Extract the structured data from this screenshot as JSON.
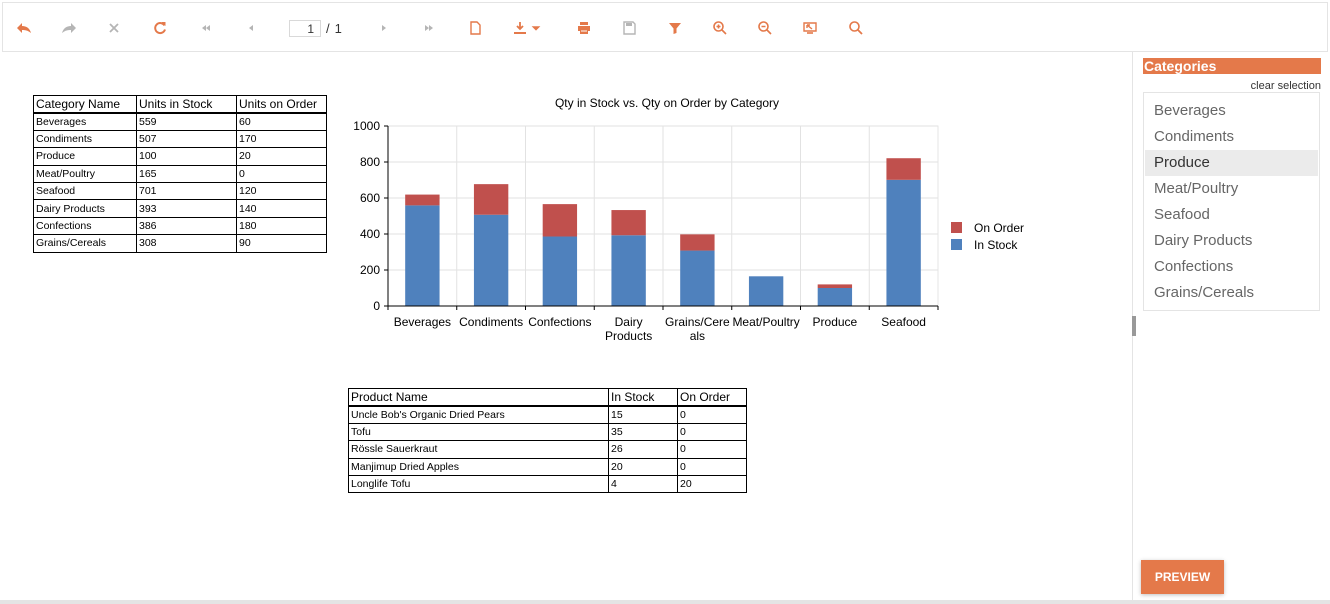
{
  "toolbar": {
    "page_current": "1",
    "page_separator": "/",
    "page_total": "1",
    "accent": "#e4794a",
    "muted": "#b5b5b5",
    "buttons": [
      "undo-icon",
      "redo-icon",
      "close-icon",
      "refresh-icon",
      "first-page-icon",
      "prev-page-icon",
      "next-page-icon",
      "last-page-icon",
      "new-document-icon",
      "download-icon",
      "print-icon",
      "save-icon",
      "filter-icon",
      "zoom-in-icon",
      "zoom-out-icon",
      "fullscreen-icon",
      "search-icon"
    ]
  },
  "category_table": {
    "headers": [
      "Category Name",
      "Units in Stock",
      "Units on Order"
    ],
    "rows": [
      [
        "Beverages",
        "559",
        "60"
      ],
      [
        "Condiments",
        "507",
        "170"
      ],
      [
        "Produce",
        "100",
        "20"
      ],
      [
        "Meat/Poultry",
        "165",
        "0"
      ],
      [
        "Seafood",
        "701",
        "120"
      ],
      [
        "Dairy Products",
        "393",
        "140"
      ],
      [
        "Confections",
        "386",
        "180"
      ],
      [
        "Grains/Cereals",
        "308",
        "90"
      ]
    ]
  },
  "product_table": {
    "headers": [
      "Product Name",
      "In Stock",
      "On Order"
    ],
    "rows": [
      [
        "Uncle Bob's Organic Dried Pears",
        "15",
        "0"
      ],
      [
        "Tofu",
        "35",
        "0"
      ],
      [
        "Rössle Sauerkraut",
        "26",
        "0"
      ],
      [
        "Manjimup Dried Apples",
        "20",
        "0"
      ],
      [
        "Longlife Tofu",
        "4",
        "20"
      ]
    ]
  },
  "chart_data": {
    "type": "bar",
    "stacked": true,
    "title": "Qty in Stock vs. Qty on Order by Category",
    "categories": [
      "Beverages",
      "Condiments",
      "Confections",
      "Dairy Products",
      "Grains/Cereals",
      "Meat/Poultry",
      "Produce",
      "Seafood"
    ],
    "category_label_lines": [
      [
        "Beverages"
      ],
      [
        "Condiments"
      ],
      [
        "Confections"
      ],
      [
        "Dairy",
        "Products"
      ],
      [
        "Grains/Cere",
        "als"
      ],
      [
        "Meat/Poultry"
      ],
      [
        "Produce"
      ],
      [
        "Seafood"
      ]
    ],
    "series": [
      {
        "name": "In Stock",
        "color": "#4f81bd",
        "values": [
          559,
          507,
          386,
          393,
          308,
          165,
          100,
          701
        ]
      },
      {
        "name": "On Order",
        "color": "#c0504d",
        "values": [
          60,
          170,
          180,
          140,
          90,
          0,
          20,
          120
        ]
      }
    ],
    "legend_order": [
      "On Order",
      "In Stock"
    ],
    "yticks": [
      "0",
      "200",
      "400",
      "600",
      "800",
      "1000"
    ],
    "ylim": [
      0,
      1000
    ],
    "grid": true,
    "legend": "right"
  },
  "panel": {
    "title": "Categories",
    "clear_label": "clear selection",
    "items": [
      "Beverages",
      "Condiments",
      "Produce",
      "Meat/Poultry",
      "Seafood",
      "Dairy Products",
      "Confections",
      "Grains/Cereals"
    ],
    "selected": "Produce",
    "preview_label": "PREVIEW"
  }
}
